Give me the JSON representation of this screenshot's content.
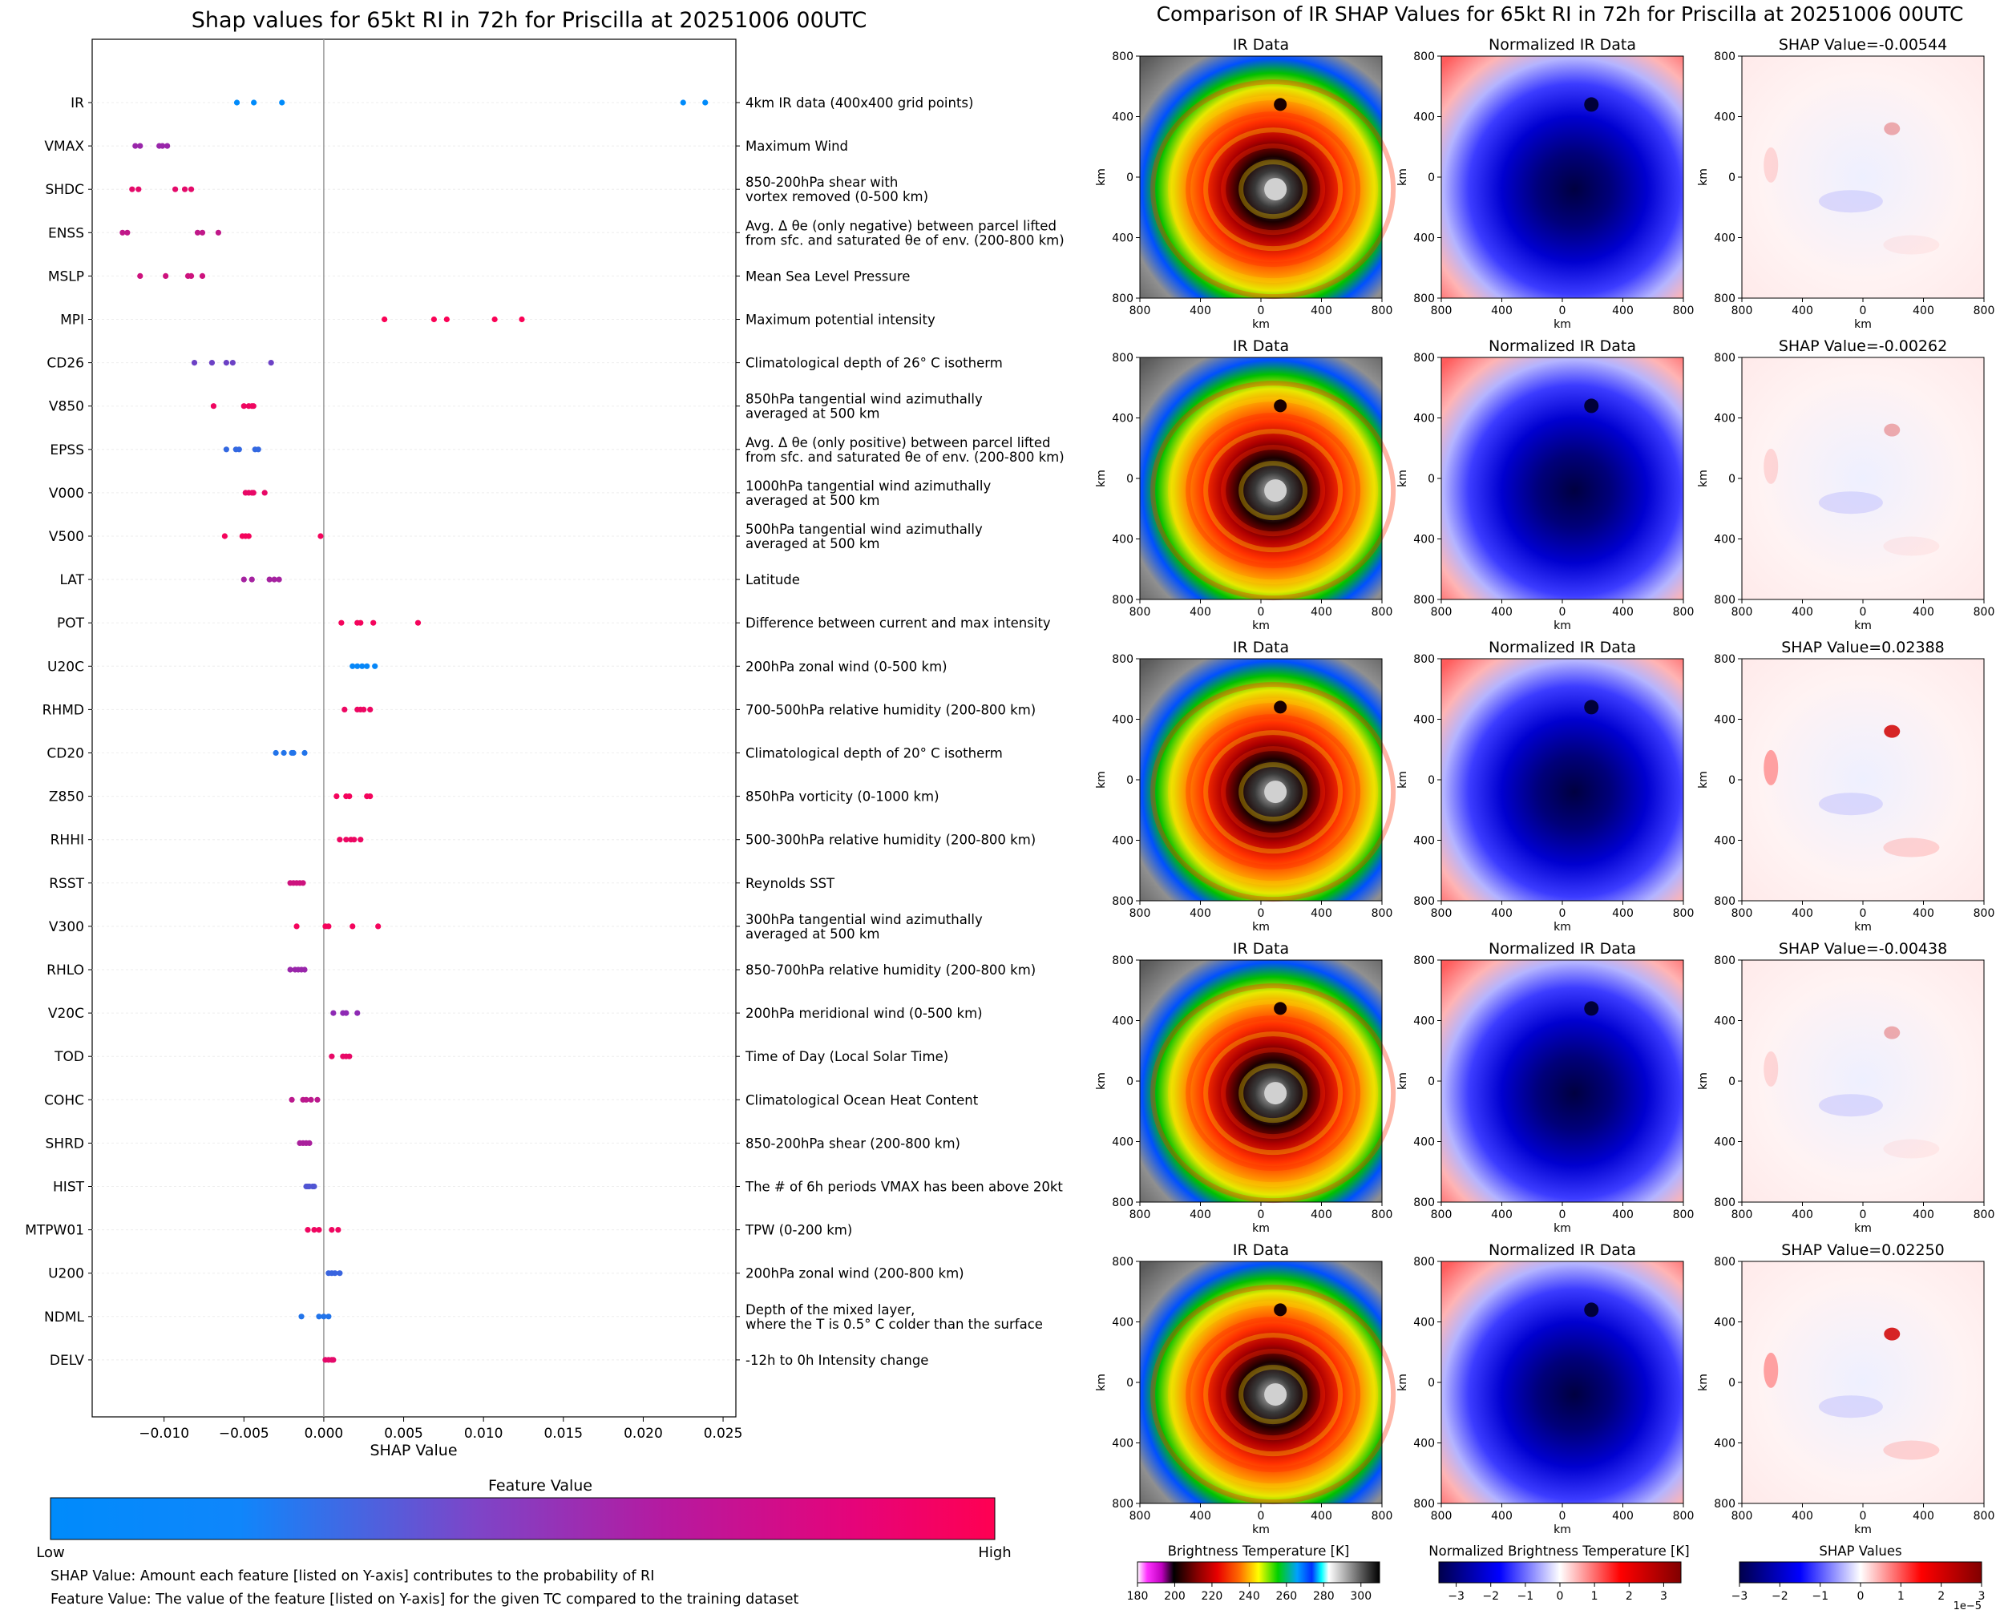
{
  "chart_data": [
    {
      "type": "scatter",
      "title": "Shap values for 65kt RI in 72h for Priscilla at 20251006 00UTC",
      "xlabel": "SHAP Value",
      "xlim": [
        -0.0145,
        0.0258
      ],
      "xticks": [
        -0.01,
        -0.005,
        0.0,
        0.005,
        0.01,
        0.015,
        0.02,
        0.025
      ],
      "xtick_labels": [
        "−0.010",
        "−0.005",
        "0.000",
        "0.005",
        "0.010",
        "0.015",
        "0.020",
        "0.025"
      ],
      "features": [
        {
          "name": "IR",
          "description": [
            "4km IR data (400x400 grid points)"
          ],
          "feature_value": 0.0,
          "shap": [
            -0.00544,
            -0.00438,
            -0.00262,
            0.0225,
            0.02388
          ]
        },
        {
          "name": "VMAX",
          "description": [
            "Maximum Wind"
          ],
          "feature_value": 0.55,
          "shap": [
            -0.0118,
            -0.0115,
            -0.0103,
            -0.0101,
            -0.0098
          ]
        },
        {
          "name": "SHDC",
          "description": [
            "850-200hPa shear with",
            "vortex removed (0-500 km)"
          ],
          "feature_value": 0.88,
          "shap": [
            -0.012,
            -0.0116,
            -0.0093,
            -0.0087,
            -0.0083
          ]
        },
        {
          "name": "ENSS",
          "description": [
            "Avg. Δ θe (only negative) between parcel lifted",
            "from sfc. and saturated θe of env. (200-800 km)"
          ],
          "feature_value": 0.72,
          "shap": [
            -0.0126,
            -0.0123,
            -0.0079,
            -0.0076,
            -0.0066
          ]
        },
        {
          "name": "MSLP",
          "description": [
            "Mean Sea Level Pressure"
          ],
          "feature_value": 0.78,
          "shap": [
            -0.0115,
            -0.0099,
            -0.0085,
            -0.0083,
            -0.0076
          ]
        },
        {
          "name": "MPI",
          "description": [
            "Maximum potential intensity"
          ],
          "feature_value": 0.98,
          "shap": [
            0.0038,
            0.0069,
            0.0077,
            0.0107,
            0.0124
          ]
        },
        {
          "name": "CD26",
          "description": [
            "Climatological depth of 26° C isotherm"
          ],
          "feature_value": 0.38,
          "shap": [
            -0.0081,
            -0.007,
            -0.0061,
            -0.0057,
            -0.0033
          ]
        },
        {
          "name": "V850",
          "description": [
            "850hPa tangential wind azimuthally",
            "averaged at 500 km"
          ],
          "feature_value": 0.93,
          "shap": [
            -0.0069,
            -0.005,
            -0.0047,
            -0.0045,
            -0.0044
          ]
        },
        {
          "name": "EPSS",
          "description": [
            "Avg. Δ θe (only positive) between parcel lifted",
            "from sfc. and saturated θe of env. (200-800 km)"
          ],
          "feature_value": 0.18,
          "shap": [
            -0.0061,
            -0.0055,
            -0.0053,
            -0.0043,
            -0.0041
          ]
        },
        {
          "name": "V000",
          "description": [
            "1000hPa tangential wind azimuthally",
            "averaged at 500 km"
          ],
          "feature_value": 0.9,
          "shap": [
            -0.0049,
            -0.0047,
            -0.0045,
            -0.0044,
            -0.0037
          ]
        },
        {
          "name": "V500",
          "description": [
            "500hPa tangential wind azimuthally",
            "averaged at 500 km"
          ],
          "feature_value": 0.95,
          "shap": [
            -0.0062,
            -0.0051,
            -0.0049,
            -0.0047,
            -0.0002
          ]
        },
        {
          "name": "LAT",
          "description": [
            "Latitude"
          ],
          "feature_value": 0.6,
          "shap": [
            -0.005,
            -0.0045,
            -0.0034,
            -0.0031,
            -0.0028
          ]
        },
        {
          "name": "POT",
          "description": [
            "Difference between current and max intensity"
          ],
          "feature_value": 0.95,
          "shap": [
            0.0011,
            0.0021,
            0.0023,
            0.0031,
            0.0059
          ]
        },
        {
          "name": "U20C",
          "description": [
            "200hPa zonal wind (0-500 km)"
          ],
          "feature_value": 0.02,
          "shap": [
            0.0018,
            0.0021,
            0.0024,
            0.0027,
            0.0032
          ]
        },
        {
          "name": "RHMD",
          "description": [
            "700-500hPa relative humidity (200-800 km)"
          ],
          "feature_value": 0.92,
          "shap": [
            0.0013,
            0.0021,
            0.0023,
            0.0025,
            0.0029
          ]
        },
        {
          "name": "CD20",
          "description": [
            "Climatological depth of 20° C isotherm"
          ],
          "feature_value": 0.12,
          "shap": [
            -0.003,
            -0.0025,
            -0.002,
            -0.0019,
            -0.0012
          ]
        },
        {
          "name": "Z850",
          "description": [
            "850hPa vorticity (0-1000 km)"
          ],
          "feature_value": 0.95,
          "shap": [
            0.0008,
            0.0014,
            0.0016,
            0.0027,
            0.0029
          ]
        },
        {
          "name": "RHHI",
          "description": [
            "500-300hPa relative humidity (200-800 km)"
          ],
          "feature_value": 0.92,
          "shap": [
            0.001,
            0.0014,
            0.0017,
            0.0019,
            0.0023
          ]
        },
        {
          "name": "RSST",
          "description": [
            "Reynolds SST"
          ],
          "feature_value": 0.78,
          "shap": [
            -0.0021,
            -0.0019,
            -0.0017,
            -0.0015,
            -0.0013
          ]
        },
        {
          "name": "V300",
          "description": [
            "300hPa tangential wind azimuthally",
            "averaged at 500 km"
          ],
          "feature_value": 0.95,
          "shap": [
            -0.0017,
            0.0001,
            0.0003,
            0.0018,
            0.0034
          ]
        },
        {
          "name": "RHLO",
          "description": [
            "850-700hPa relative humidity (200-800 km)"
          ],
          "feature_value": 0.55,
          "shap": [
            -0.0021,
            -0.0018,
            -0.0016,
            -0.0014,
            -0.0012
          ]
        },
        {
          "name": "V20C",
          "description": [
            "200hPa meridional wind (0-500 km)"
          ],
          "feature_value": 0.5,
          "shap": [
            0.0006,
            0.0012,
            0.0014,
            0.0021
          ]
        },
        {
          "name": "TOD",
          "description": [
            "Time of Day (Local Solar Time)"
          ],
          "feature_value": 0.9,
          "shap": [
            0.0005,
            0.0012,
            0.0014,
            0.0016
          ]
        },
        {
          "name": "COHC",
          "description": [
            "Climatological Ocean Heat Content"
          ],
          "feature_value": 0.7,
          "shap": [
            -0.002,
            -0.0013,
            -0.0011,
            -0.0008,
            -0.0004
          ]
        },
        {
          "name": "SHRD",
          "description": [
            "850-200hPa shear (200-800 km)"
          ],
          "feature_value": 0.62,
          "shap": [
            -0.0015,
            -0.0013,
            -0.0011,
            -0.0009
          ]
        },
        {
          "name": "HIST",
          "description": [
            "The # of 6h periods VMAX has been above 20kt"
          ],
          "feature_value": 0.28,
          "shap": [
            -0.0011,
            -0.001,
            -0.0009,
            -0.0007,
            -0.0006
          ]
        },
        {
          "name": "MTPW01",
          "description": [
            "TPW (0-200 km)"
          ],
          "feature_value": 0.93,
          "shap": [
            -0.001,
            -0.0006,
            -0.0003,
            0.0005,
            0.0009
          ]
        },
        {
          "name": "U200",
          "description": [
            "200hPa zonal wind (200-800 km)"
          ],
          "feature_value": 0.2,
          "shap": [
            0.0003,
            0.0005,
            0.0007,
            0.001
          ]
        },
        {
          "name": "NDML",
          "description": [
            "Depth of the mixed layer,",
            "where the T is 0.5° C colder than the surface"
          ],
          "feature_value": 0.12,
          "shap": [
            -0.0014,
            -0.0003,
            0.0,
            0.0003
          ]
        },
        {
          "name": "DELV",
          "description": [
            "-12h to 0h Intensity change"
          ],
          "feature_value": 0.88,
          "shap": [
            0.0001,
            0.0003,
            0.0005,
            0.0006
          ]
        }
      ],
      "colorbar": {
        "title": "Feature Value",
        "low_label": "Low",
        "high_label": "High",
        "low_color": "#008bfb",
        "mid_color": "#8e2ab4",
        "high_color": "#ff0052"
      },
      "footnotes": [
        "SHAP Value: Amount each feature [listed on Y-axis] contributes to the probability of RI",
        "Feature Value: The value of the feature [listed on Y-axis] for the given TC compared to the training dataset"
      ]
    },
    {
      "type": "heatmap",
      "title": "Comparison of IR SHAP Values for 65kt RI in 72h for Priscilla at 20251006 00UTC",
      "column_titles": [
        "IR Data",
        "Normalized IR Data"
      ],
      "shap_prefix": "SHAP Value=",
      "shap_values": [
        "-0.00544",
        "-0.00262",
        "0.02388",
        "-0.00438",
        "0.02250"
      ],
      "axis_label": "km",
      "tick_labels": [
        "800",
        "400",
        "0",
        "400",
        "800"
      ],
      "colorbars": [
        {
          "title": "Brightness Temperature [K]",
          "ticks": [
            "180",
            "200",
            "220",
            "240",
            "260",
            "280",
            "300"
          ],
          "range": [
            180,
            310
          ]
        },
        {
          "title": "Normalized Brightness Temperature [K]",
          "ticks": [
            "−3",
            "−2",
            "−1",
            "0",
            "1",
            "2",
            "3"
          ],
          "range": [
            -3.5,
            3.5
          ]
        },
        {
          "title": "SHAP Values",
          "ticks": [
            "−3",
            "−2",
            "−1",
            "0",
            "1",
            "2",
            "3"
          ],
          "range": [
            -3,
            3
          ],
          "offset_label": "1e−5"
        }
      ]
    }
  ]
}
